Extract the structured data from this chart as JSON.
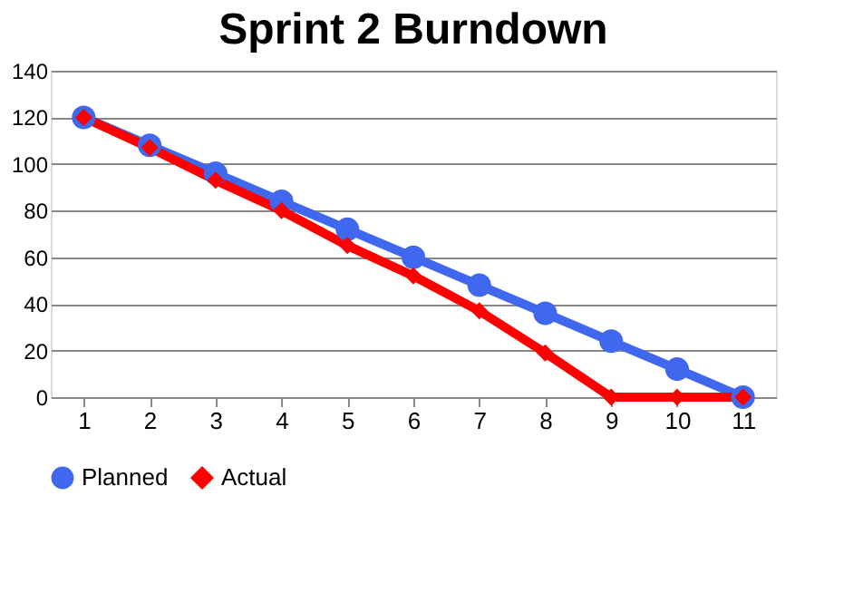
{
  "chart_data": {
    "type": "line",
    "title": "Sprint 2 Burndown",
    "categories": [
      "1",
      "2",
      "3",
      "4",
      "5",
      "6",
      "7",
      "8",
      "9",
      "10",
      "11"
    ],
    "series": [
      {
        "name": "Planned",
        "color": "#3f68ee",
        "marker": "circle",
        "values": [
          120,
          108,
          96,
          84,
          72,
          60,
          48,
          36,
          24,
          12,
          0
        ]
      },
      {
        "name": "Actual",
        "color": "#ff0000",
        "marker": "diamond",
        "values": [
          120,
          107,
          93,
          80,
          65,
          52,
          37,
          19,
          0,
          0,
          0
        ]
      }
    ],
    "ylim": [
      0,
      140
    ],
    "yticks": [
      0,
      20,
      40,
      60,
      80,
      100,
      120,
      140
    ],
    "grid": "y",
    "legend": "bottom",
    "line_style": "solid"
  }
}
